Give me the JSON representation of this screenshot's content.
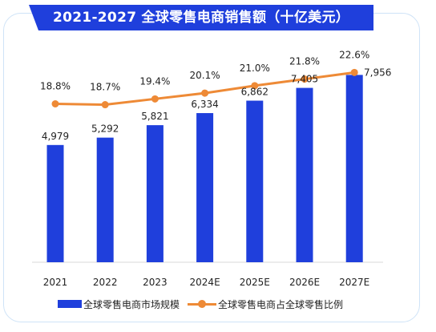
{
  "title": "2021-2027 全球零售电商销售额（十亿美元）",
  "colors": {
    "bar": "#1f3fdc",
    "line": "#ee8a36",
    "title_bg": "#1f3fdc",
    "card_border": "#cfe3f7"
  },
  "legend": {
    "bar_label": "全球零售电商市场规模",
    "line_label": "全球零售电商占全球零售比例"
  },
  "chart_data": {
    "type": "bar",
    "title": "2021-2027 全球零售电商销售额（十亿美元）",
    "categories": [
      "2021",
      "2022",
      "2023",
      "2024E",
      "2025E",
      "2026E",
      "2027E"
    ],
    "series": [
      {
        "name": "全球零售电商市场规模",
        "type": "bar",
        "values": [
          4979,
          5292,
          5821,
          6334,
          6862,
          7405,
          7956
        ],
        "labels": [
          "4,979",
          "5,292",
          "5,821",
          "6,334",
          "6,862",
          "7,405",
          "7,956"
        ]
      },
      {
        "name": "全球零售电商占全球零售比例",
        "type": "line",
        "values": [
          18.8,
          18.7,
          19.4,
          20.1,
          21.0,
          21.8,
          22.6
        ],
        "labels": [
          "18.8%",
          "18.7%",
          "19.4%",
          "20.1%",
          "21.0%",
          "21.8%",
          "22.6%"
        ]
      }
    ],
    "xlabel": "",
    "ylabel": "",
    "ylim": [
      0,
      10000
    ],
    "y2lim": [
      10,
      24
    ],
    "grid": false,
    "legend_position": "bottom"
  }
}
